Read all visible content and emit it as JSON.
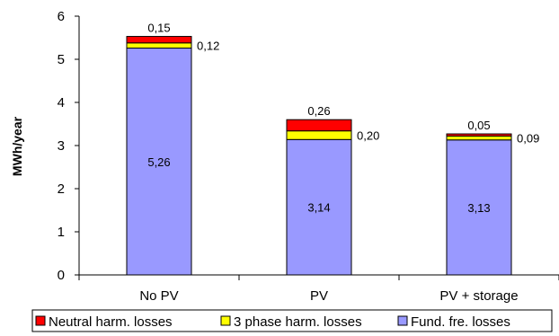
{
  "chart_data": {
    "type": "bar",
    "stacked": true,
    "xlabel": "",
    "ylabel": "MWh/year",
    "ylim": [
      0,
      6
    ],
    "yticks": [
      "0",
      "1",
      "2",
      "3",
      "4",
      "5",
      "6"
    ],
    "grid": false,
    "legend_position": "bottom",
    "categories": [
      "No PV",
      "PV",
      "PV + storage"
    ],
    "series": [
      {
        "name": "Fund. fre. losses",
        "color": "#9999ff",
        "values": [
          5.26,
          3.14,
          3.13
        ],
        "labels": [
          "5,26",
          "3,14",
          "3,13"
        ]
      },
      {
        "name": "3 phase harm. losses",
        "color": "#ffff00",
        "values": [
          0.12,
          0.2,
          0.09
        ],
        "labels": [
          "0,12",
          "0,20",
          "0,09"
        ]
      },
      {
        "name": "Neutral harm. losses",
        "color": "#ff0000",
        "values": [
          0.15,
          0.26,
          0.05
        ],
        "labels": [
          "0,15",
          "0,26",
          "0,05"
        ]
      }
    ],
    "legend": [
      "Neutral harm. losses",
      "3 phase harm. losses",
      "Fund. fre. losses"
    ]
  }
}
